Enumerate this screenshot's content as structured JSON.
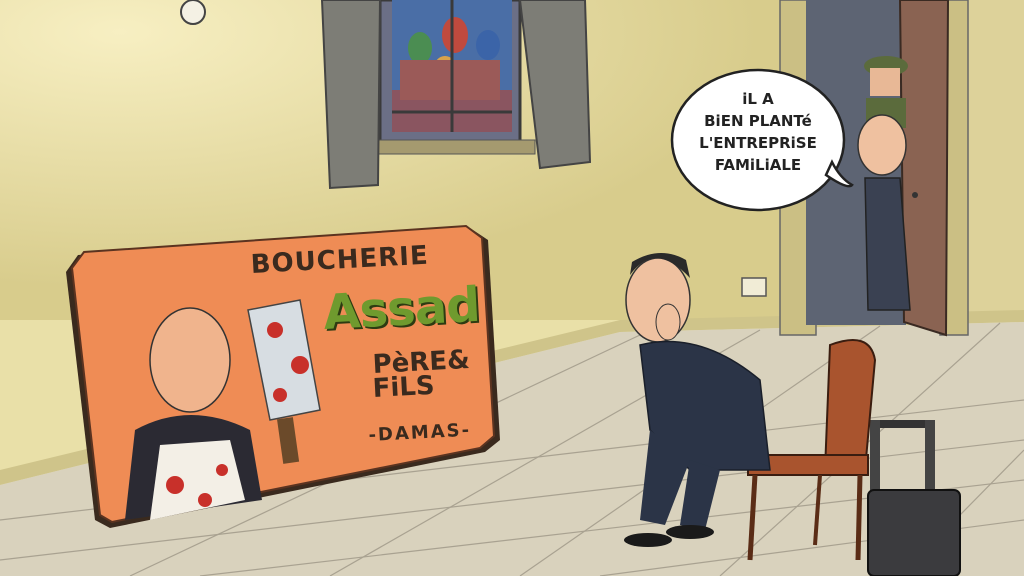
{
  "sign": {
    "line1": "BOUCHERIE",
    "name": "Assad",
    "line3": "PèRE&",
    "line4": "FiLS",
    "line5": "-DAMAS-"
  },
  "speech_bubble": {
    "lines": [
      "iL A",
      "BiEN PLANTé",
      "L'ENTREPRiSE",
      "FAMiLiALE"
    ]
  },
  "colors": {
    "wall": "#e9e0a8",
    "floor": "#d9d2bd",
    "sign_orange": "#ef8c55",
    "assad_green": "#6f9a2e",
    "suit_navy": "#2b3447",
    "chair_brown": "#a9542e"
  }
}
